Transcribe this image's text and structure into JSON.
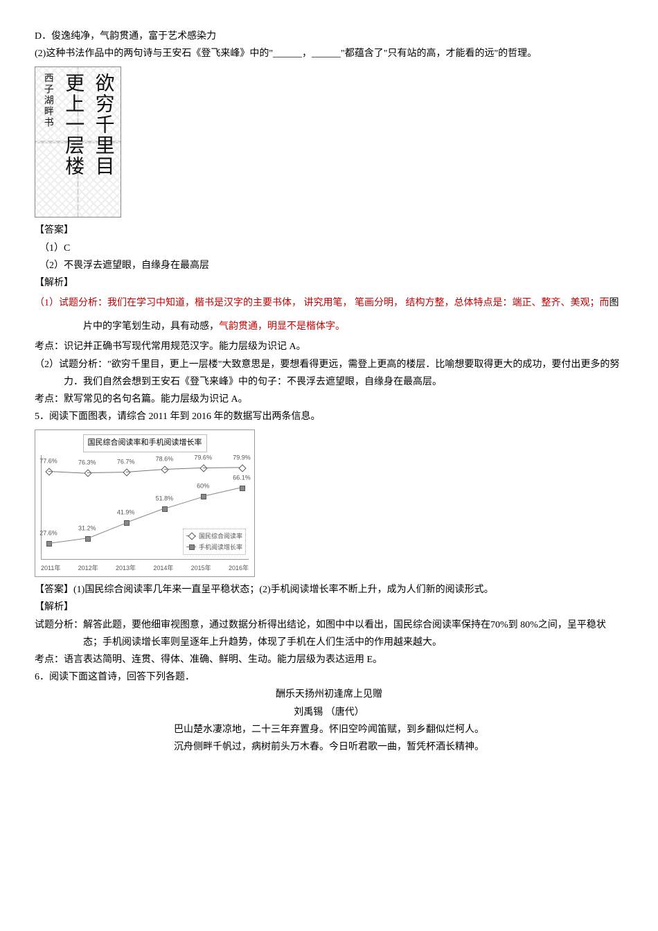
{
  "q2": {
    "optionD_label": "D．",
    "optionD_text": "俊逸纯净，气韵贯通，富于艺术感染力",
    "part2_label": "(2)",
    "part2_text": "这种书法作品中的两句诗与王安石《登飞来峰》中的\"______，______\"都蕴含了\"只有站的高，才能看的远\"的哲理。",
    "calligraphy": {
      "col1": "欲穷千里目",
      "col2": "更上一层楼",
      "col3": "西子湖畔书"
    },
    "answer_header": "【答案】",
    "answer1": "（1）C",
    "answer2": "（2）不畏浮去遮望眼，自缘身在最高层",
    "explain_header": "【解析】",
    "explain1_label": "（1）试题分析：",
    "explain1_a": "我们在学习中知道，",
    "explain1_b": "楷书是汉字的主要书体， 讲究用笔， 笔画分明， 结构方整，总体特点是：端正、整齐、美观；而",
    "explain1_c": "图片中的字笔划生动，具有动感，",
    "explain1_d": "气韵贯通，明显不是楷体字。",
    "kaodian1": "考点：识记并正确书写现代常用规范汉字。能力层级为识记 A。",
    "explain2": "（2）试题分析：\"欲穷千里目，更上一层楼\"大致意思是，要想看得更远，需登上更高的楼层．比喻想要取得更大的成功，要付出更多的努力．我们自然会想到王安石《登飞来峰》中的句子：不畏浮去遮望眼，自缘身在最高层。",
    "kaodian2": "考点：默写常见的名句名篇。能力层级为识记 A。"
  },
  "q5": {
    "stem": "5．阅读下面图表，请综合 2011 年到 2016 年的数据写出两条信息。",
    "chart": {
      "title": "国民综合阅读率和手机阅读增长率",
      "years": [
        "2011年",
        "2012年",
        "2013年",
        "2014年",
        "2015年",
        "2016年"
      ],
      "series": [
        {
          "name": "国民综合阅读率",
          "values": [
            77.6,
            76.3,
            76.7,
            78.6,
            79.6,
            79.9
          ],
          "labels": [
            "77.6%",
            "76.3%",
            "76.7%",
            "78.6%",
            "79.6%",
            "79.9%"
          ],
          "marker": "diamond",
          "color": "#777777"
        },
        {
          "name": "手机阅读增长率",
          "values": [
            27.6,
            31.2,
            41.9,
            51.8,
            60.0,
            66.1
          ],
          "labels": [
            "27.6%",
            "31.2%",
            "41.9%",
            "51.8%",
            "60%",
            "66.1%"
          ],
          "marker": "square",
          "color": "#888888"
        }
      ],
      "ylim": [
        20,
        85
      ],
      "background_color": "#ffffff",
      "axis_color": "#999999",
      "label_fontsize": 9,
      "title_fontsize": 11
    },
    "answer_header": "【答案】",
    "answer_text": "(1)国民综合阅读率几年来一直呈平稳状态；(2)手机阅读增长率不断上升，成为人们新的阅读形式。",
    "explain_header": "【解析】",
    "explain": "试题分析：解答此题，要他细审视图意，通过数据分析得出结论，如图中中以看出，国民综合阅读率保持在70%到 80%之间，呈平稳状态；手机阅读增长率则呈逐年上升趋势，体现了手机在人们生活中的作用越来越大。",
    "kaodian": "考点：语言表达简明、连贯、得体、准确、鲜明、生动。能力层级为表达运用 E。"
  },
  "q6": {
    "stem": "6．阅读下面这首诗，回答下列各题．",
    "poem_title": "酬乐天扬州初逢席上见赠",
    "poem_author": "刘禹锡 （唐代）",
    "line1": "巴山楚水凄凉地，二十三年弃置身。怀旧空吟闻笛赋，到乡翻似烂柯人。",
    "line2": "沉舟侧畔千帆过，病树前头万木春。今日听君歌一曲，暂凭杯酒长精神。"
  }
}
